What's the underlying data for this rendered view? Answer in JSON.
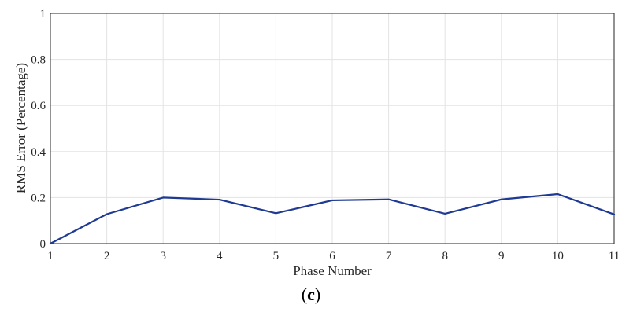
{
  "chart_data": {
    "type": "line",
    "xlabel": "Phase Number",
    "ylabel": "RMS  Error (Percentage)",
    "x": [
      1,
      2,
      3,
      4,
      5,
      6,
      7,
      8,
      9,
      10,
      11
    ],
    "xlim": [
      1,
      11
    ],
    "ylim": [
      0,
      1
    ],
    "xticks": [
      "1",
      "2",
      "3",
      "4",
      "5",
      "6",
      "7",
      "8",
      "9",
      "10",
      "11"
    ],
    "yticks": [
      "0",
      "0.2",
      "0.4",
      "0.6",
      "0.8",
      "1"
    ],
    "yticks_values": [
      0,
      0.2,
      0.4,
      0.6,
      0.8,
      1
    ],
    "grid": true,
    "series": [
      {
        "values": [
          0,
          0.128,
          0.2,
          0.191,
          0.132,
          0.188,
          0.192,
          0.13,
          0.192,
          0.215,
          0.127
        ],
        "color": "#1f3a93"
      }
    ]
  },
  "caption": {
    "open": "(",
    "letter": "c",
    "close": ")"
  }
}
